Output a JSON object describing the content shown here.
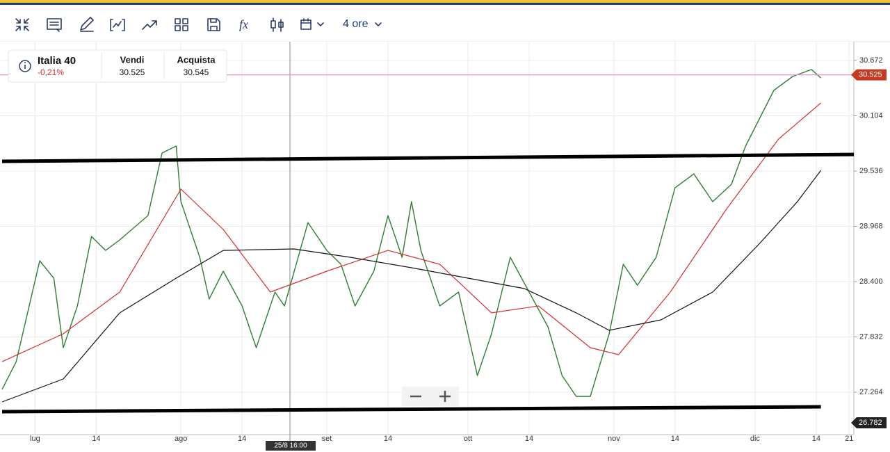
{
  "toolbar": {
    "timeframe": "4 ore"
  },
  "quote": {
    "instrument": "Italia 40",
    "change": "-0,21%",
    "sell_label": "Vendi",
    "sell": "30.525",
    "buy_label": "Acquista",
    "buy": "30.545"
  },
  "chart_data": {
    "type": "line",
    "xlim": [
      -7,
      174
    ],
    "ylim": [
      26864,
      30865
    ],
    "xticks": [
      {
        "value": 0,
        "label": "lug"
      },
      {
        "value": 13,
        "label": "14"
      },
      {
        "value": 31,
        "label": "ago"
      },
      {
        "value": 44,
        "label": "14"
      },
      {
        "value": 62,
        "label": "set"
      },
      {
        "value": 75,
        "label": "14"
      },
      {
        "value": 92,
        "label": "ott"
      },
      {
        "value": 105,
        "label": "14"
      },
      {
        "value": 123,
        "label": "nov"
      },
      {
        "value": 136,
        "label": "14"
      },
      {
        "value": 153,
        "label": "dic"
      },
      {
        "value": 166,
        "label": "14"
      },
      {
        "value": 173,
        "label": "21"
      }
    ],
    "yticks": [
      {
        "value": 30672,
        "label": "30.672"
      },
      {
        "value": 30104,
        "label": "30.104"
      },
      {
        "value": 29536,
        "label": "29.536"
      },
      {
        "value": 28968,
        "label": "28.968"
      },
      {
        "value": 28400,
        "label": "28.400"
      },
      {
        "value": 27832,
        "label": "27.832"
      },
      {
        "value": 27264,
        "label": "27.264"
      }
    ],
    "grid": true,
    "series": [
      {
        "color": "#2e7d32",
        "width": 1.4,
        "x": [
          -7,
          -4,
          1,
          4,
          6,
          9,
          12,
          15,
          18,
          24,
          27,
          30,
          31,
          35,
          37,
          40,
          44,
          47,
          51,
          53,
          58,
          62,
          65,
          68,
          72,
          75,
          78,
          80,
          82,
          86,
          90,
          94,
          97,
          101,
          105,
          109,
          112,
          115,
          118,
          122,
          125,
          128,
          132,
          136,
          140,
          144,
          148,
          151,
          157,
          161,
          165,
          167
        ],
        "values": [
          27292,
          27578,
          28614,
          28436,
          27721,
          28150,
          28864,
          28721,
          28829,
          29079,
          29722,
          29793,
          29222,
          28650,
          28221,
          28507,
          28150,
          27721,
          28293,
          28150,
          29007,
          28721,
          28579,
          28150,
          28507,
          29079,
          28650,
          29222,
          28721,
          28150,
          28293,
          27435,
          27864,
          28650,
          28293,
          27936,
          27435,
          27221,
          27221,
          27864,
          28579,
          28364,
          28650,
          29364,
          29507,
          29222,
          29400,
          29793,
          30365,
          30508,
          30579,
          30493
        ]
      },
      {
        "color": "#d32f2f",
        "width": 1.2,
        "x": [
          -7,
          6,
          18,
          31,
          40,
          50,
          62,
          75,
          86,
          97,
          107,
          118,
          124,
          135,
          147,
          158,
          167
        ],
        "values": [
          27578,
          27864,
          28293,
          29350,
          28936,
          28293,
          28507,
          28721,
          28579,
          28079,
          28150,
          27721,
          27650,
          28293,
          29150,
          29865,
          30236
        ]
      },
      {
        "color": "#111111",
        "width": 1.2,
        "x": [
          -7,
          6,
          18,
          30,
          40,
          55,
          67,
          80,
          92,
          104,
          115,
          122,
          133,
          144,
          154,
          162,
          167
        ],
        "values": [
          27164,
          27400,
          28079,
          28436,
          28721,
          28736,
          28650,
          28543,
          28436,
          28329,
          28079,
          27900,
          28007,
          28293,
          28793,
          29222,
          29543
        ]
      }
    ],
    "trendlines": [
      {
        "x": [
          -7,
          174
        ],
        "values": [
          29636,
          29707
        ]
      },
      {
        "x": [
          -7,
          167
        ],
        "values": [
          27064,
          27114
        ]
      }
    ],
    "last_price": {
      "value": 30525,
      "label": "30.525"
    },
    "low": {
      "value": 26782,
      "label": "26.782"
    },
    "crosshair": {
      "label": "25/8 16:00"
    }
  }
}
